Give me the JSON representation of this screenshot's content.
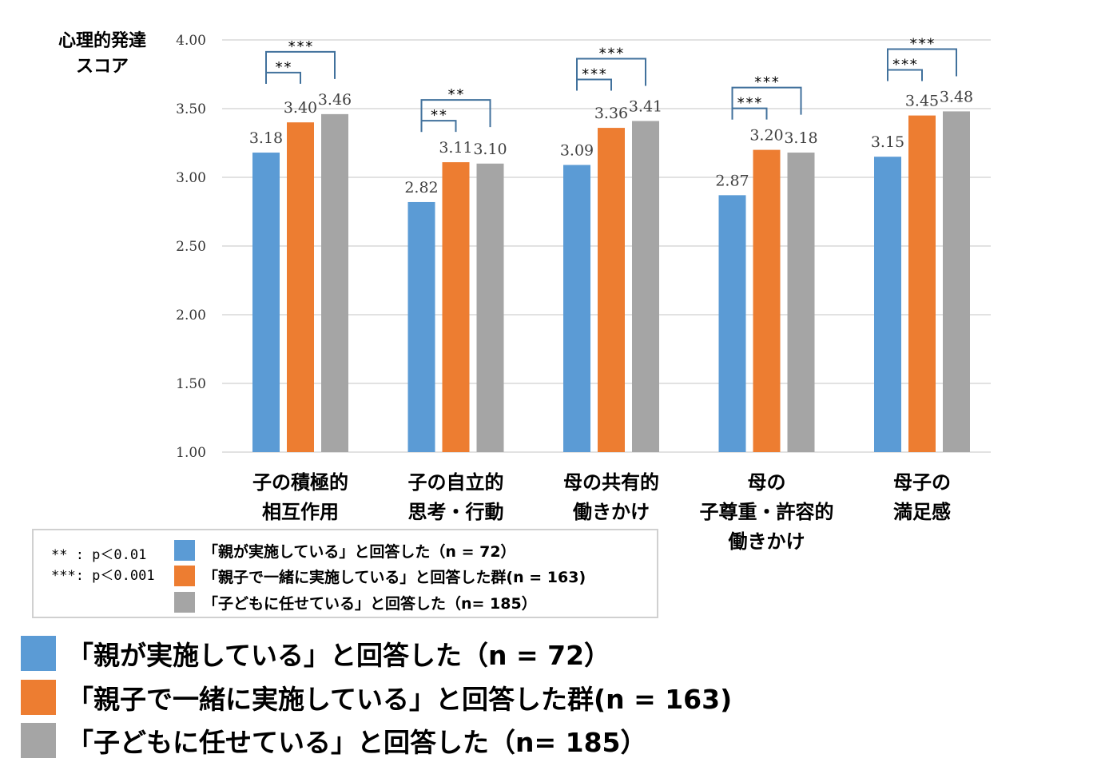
{
  "colors": {
    "blue": "#5B9BD5",
    "orange": "#ED7D31",
    "gray": "#A5A5A5",
    "grid": "#D9D9D9",
    "bracket": "#41719C"
  },
  "chart_data": {
    "type": "bar",
    "ylabel_lines": [
      "心理的発達",
      "スコア"
    ],
    "ylim": [
      1.0,
      4.0
    ],
    "yticks": [
      "1.00",
      "1.50",
      "2.00",
      "2.50",
      "3.00",
      "3.50",
      "4.00"
    ],
    "grid": true,
    "categories": [
      [
        "子の積極的",
        "相互作用"
      ],
      [
        "子の自立的",
        "思考・行動"
      ],
      [
        "母の共有的",
        "働きかけ"
      ],
      [
        "母の",
        "子尊重・許容的",
        "働きかけ"
      ],
      [
        "母子の",
        "満足感"
      ]
    ],
    "series": [
      {
        "name": "「親が実施している」と回答した（n = 72）",
        "color": "blue",
        "values": [
          3.18,
          2.82,
          3.09,
          2.87,
          3.15
        ],
        "labels": [
          "3.18",
          "2.82",
          "3.09",
          "2.87",
          "3.15"
        ]
      },
      {
        "name": "「親子で一緒に実施している」と回答した群(n = 163)",
        "color": "orange",
        "values": [
          3.4,
          3.11,
          3.36,
          3.2,
          3.45
        ],
        "labels": [
          "3.40",
          "3.11",
          "3.36",
          "3.20",
          "3.45"
        ]
      },
      {
        "name": "「子どもに任せている」と回答した（n= 185）",
        "color": "gray",
        "values": [
          3.46,
          3.1,
          3.41,
          3.18,
          3.48
        ],
        "labels": [
          "3.46",
          "3.10",
          "3.41",
          "3.18",
          "3.48"
        ]
      }
    ],
    "significance": [
      {
        "short": "**",
        "long": "***"
      },
      {
        "short": "**",
        "long": "**"
      },
      {
        "short": "***",
        "long": "***"
      },
      {
        "short": "***",
        "long": "***"
      },
      {
        "short": "***",
        "long": "***"
      }
    ]
  },
  "sig_notes": [
    "** : p＜0.01",
    "***: p＜0.001"
  ],
  "inner_legend": [
    {
      "label": "「親が実施している」と回答した（n = 72）",
      "color": "blue"
    },
    {
      "label": "「親子で一緒に実施している」と回答した群(n = 163)",
      "color": "orange"
    },
    {
      "label": "「子どもに任せている」と回答した（n= 185）",
      "color": "gray"
    }
  ],
  "big_legend": [
    {
      "label": "「親が実施している」と回答した（n = 72）",
      "color": "blue"
    },
    {
      "label": "「親子で一緒に実施している」と回答した群(n = 163)",
      "color": "orange"
    },
    {
      "label": "「子どもに任せている」と回答した（n= 185）",
      "color": "gray"
    }
  ]
}
